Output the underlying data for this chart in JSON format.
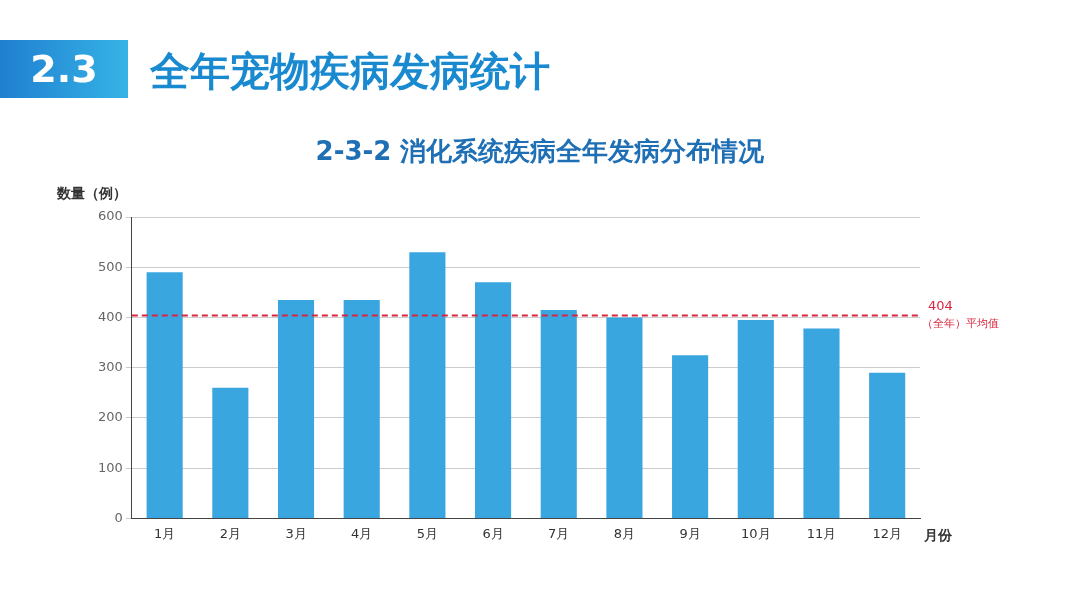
{
  "chart_data": {
    "type": "bar",
    "title": "全年宠物疾病发病统计",
    "subtitle": "2-3-2 消化系统疾病全年发病分布情况",
    "annotations": [
      "2.3"
    ],
    "ylabel": "数量（例）",
    "xlabel": "月份",
    "categories": [
      "1月",
      "2月",
      "3月",
      "4月",
      "5月",
      "6月",
      "7月",
      "8月",
      "9月",
      "10月",
      "11月",
      "12月"
    ],
    "values": [
      490,
      260,
      435,
      435,
      530,
      470,
      415,
      400,
      325,
      395,
      378,
      290
    ],
    "color": "#3aa6e0",
    "ylim": [
      0,
      600
    ],
    "yticks": [
      0,
      100,
      200,
      300,
      400,
      500,
      600
    ],
    "grid": "y",
    "ref_lines": [
      {
        "axis": "y",
        "value": 404,
        "label": "404 （全年）平均值",
        "color": "#d7263d",
        "line_style": "dashed"
      }
    ]
  }
}
